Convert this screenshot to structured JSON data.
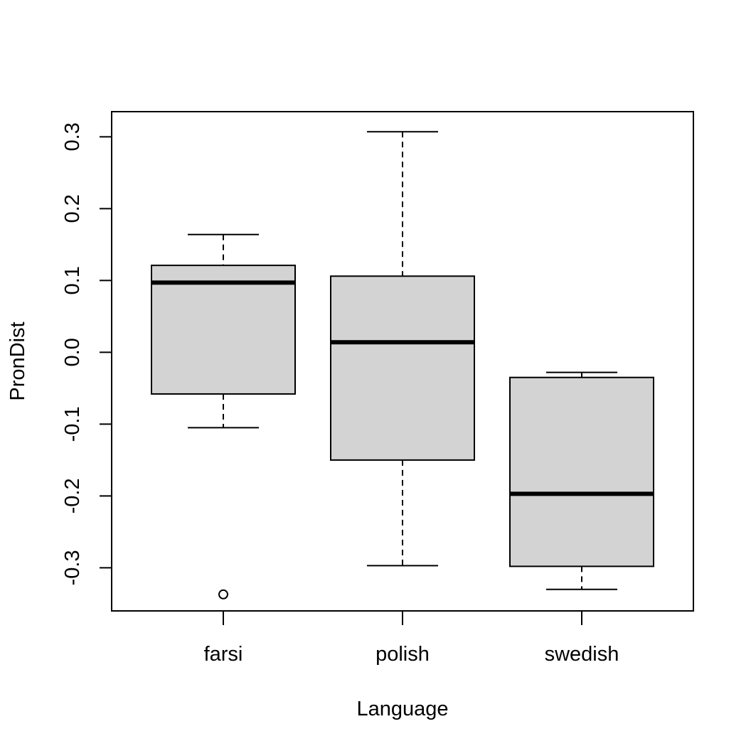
{
  "chart_data": {
    "type": "boxplot",
    "xlabel": "Language",
    "ylabel": "PronDist",
    "categories": [
      "farsi",
      "polish",
      "swedish"
    ],
    "yticks": [
      "-0.3",
      "-0.2",
      "-0.1",
      "0.0",
      "0.1",
      "0.2",
      "0.3"
    ],
    "ylim": [
      -0.36,
      0.335
    ],
    "box_fill": "#d3d3d3",
    "grid": false,
    "boxes": [
      {
        "name": "farsi",
        "whisker_low": -0.105,
        "q1": -0.058,
        "median": 0.097,
        "q3": 0.121,
        "whisker_high": 0.164,
        "outliers": [
          -0.337
        ]
      },
      {
        "name": "polish",
        "whisker_low": -0.297,
        "q1": -0.15,
        "median": 0.014,
        "q3": 0.106,
        "whisker_high": 0.307,
        "outliers": []
      },
      {
        "name": "swedish",
        "whisker_low": -0.33,
        "q1": -0.298,
        "median": -0.197,
        "q3": -0.035,
        "whisker_high": -0.028,
        "outliers": []
      }
    ]
  }
}
